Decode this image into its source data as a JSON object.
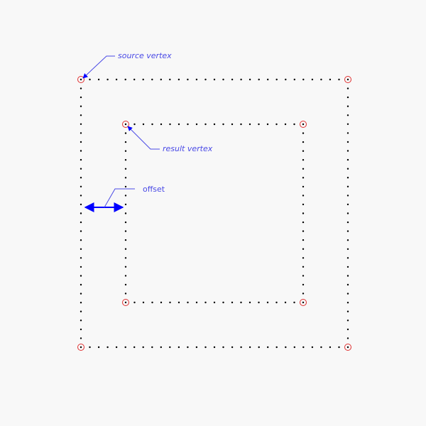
{
  "labels": {
    "source_vertex": "source vertex",
    "result_vertex": "result vertex",
    "offset": "offset"
  },
  "colors": {
    "background": "#f8f8f8",
    "dots": "#000000",
    "vertex_marker": "#e03030",
    "annotation": "#0000ff",
    "annotation_text": "#4a4ae6"
  }
}
